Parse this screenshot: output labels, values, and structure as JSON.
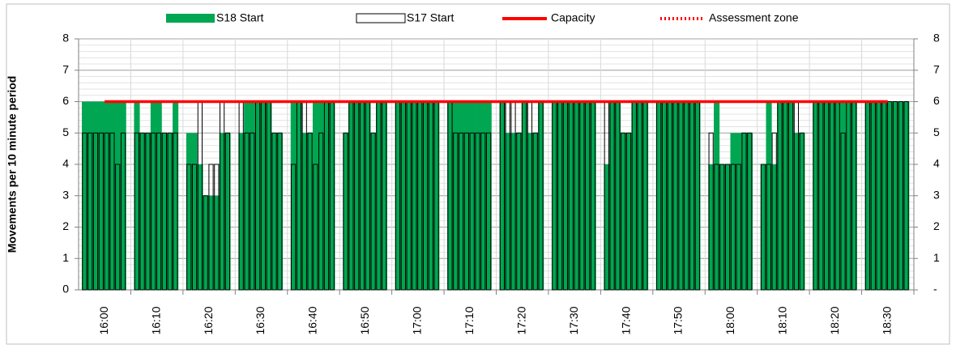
{
  "chart_data": {
    "type": "bar",
    "y_axis_label": "Movements per 10 minute period",
    "categories": [
      "16:00",
      "16:10",
      "16:20",
      "16:30",
      "16:40",
      "16:50",
      "17:00",
      "17:10",
      "17:20",
      "17:30",
      "17:40",
      "17:50",
      "18:00",
      "18:10",
      "18:20",
      "18:30"
    ],
    "series": [
      {
        "name": "S18 Start",
        "color": "#00a651",
        "values": [
          [
            6,
            6,
            6,
            6,
            6,
            6,
            6,
            6
          ],
          [
            6,
            5,
            5,
            6,
            6,
            5,
            5,
            6
          ],
          [
            5,
            5,
            4,
            3,
            3,
            3,
            5,
            5
          ],
          [
            5,
            6,
            6,
            6,
            6,
            6,
            5,
            5
          ],
          [
            6,
            6,
            5,
            5,
            6,
            6,
            6,
            6
          ],
          [
            5,
            6,
            6,
            6,
            6,
            5,
            6,
            6
          ],
          [
            6,
            6,
            6,
            6,
            6,
            6,
            6,
            6
          ],
          [
            6,
            6,
            6,
            6,
            6,
            6,
            6,
            6
          ],
          [
            6,
            5,
            5,
            5,
            6,
            5,
            5,
            6
          ],
          [
            6,
            6,
            6,
            6,
            6,
            6,
            6,
            6
          ],
          [
            4,
            6,
            6,
            5,
            5,
            6,
            6,
            6
          ],
          [
            6,
            6,
            6,
            6,
            6,
            6,
            6,
            6
          ],
          [
            4,
            6,
            4,
            4,
            5,
            5,
            5,
            5
          ],
          [
            4,
            6,
            4,
            6,
            6,
            6,
            5,
            5
          ],
          [
            6,
            6,
            6,
            6,
            6,
            6,
            6,
            6
          ],
          [
            6,
            6,
            6,
            6,
            6,
            6,
            6,
            6
          ]
        ]
      },
      {
        "name": "S17 Start",
        "color": "#000000",
        "values": [
          [
            5,
            5,
            5,
            5,
            5,
            5,
            4,
            5
          ],
          [
            5,
            5,
            5,
            5,
            5,
            5,
            5,
            5
          ],
          [
            4,
            4,
            6,
            3,
            4,
            4,
            6,
            5
          ],
          [
            6,
            5,
            5,
            6,
            6,
            6,
            5,
            5
          ],
          [
            4,
            6,
            6,
            5,
            4,
            5,
            6,
            6
          ],
          [
            5,
            6,
            6,
            6,
            6,
            5,
            6,
            6
          ],
          [
            6,
            6,
            6,
            6,
            6,
            6,
            6,
            6
          ],
          [
            6,
            5,
            5,
            5,
            5,
            5,
            5,
            5
          ],
          [
            6,
            6,
            6,
            5,
            6,
            6,
            5,
            6
          ],
          [
            6,
            6,
            6,
            6,
            6,
            6,
            6,
            6
          ],
          [
            6,
            6,
            6,
            5,
            5,
            6,
            6,
            6
          ],
          [
            6,
            6,
            6,
            6,
            6,
            6,
            6,
            6
          ],
          [
            5,
            4,
            4,
            4,
            4,
            4,
            5,
            5
          ],
          [
            4,
            4,
            5,
            6,
            6,
            6,
            6,
            5
          ],
          [
            6,
            6,
            6,
            6,
            6,
            5,
            6,
            6
          ],
          [
            6,
            6,
            6,
            6,
            6,
            6,
            6,
            6
          ]
        ]
      }
    ],
    "lines": [
      {
        "name": "Capacity",
        "color": "#ff0000",
        "value": 6,
        "style": "solid"
      },
      {
        "name": "Assessment zone",
        "color": "#ff0000",
        "value": 6,
        "style": "dotted"
      }
    ],
    "ylim": [
      0,
      8
    ],
    "yticks": [
      0,
      1,
      2,
      3,
      4,
      5,
      6,
      7,
      8
    ],
    "y2lim": [
      0,
      8
    ],
    "y2ticks": [
      {
        "value": 0,
        "label": "-"
      },
      1,
      2,
      3,
      4,
      5,
      6,
      7,
      8
    ],
    "minor_grid_step": 0.2,
    "grid": true
  }
}
